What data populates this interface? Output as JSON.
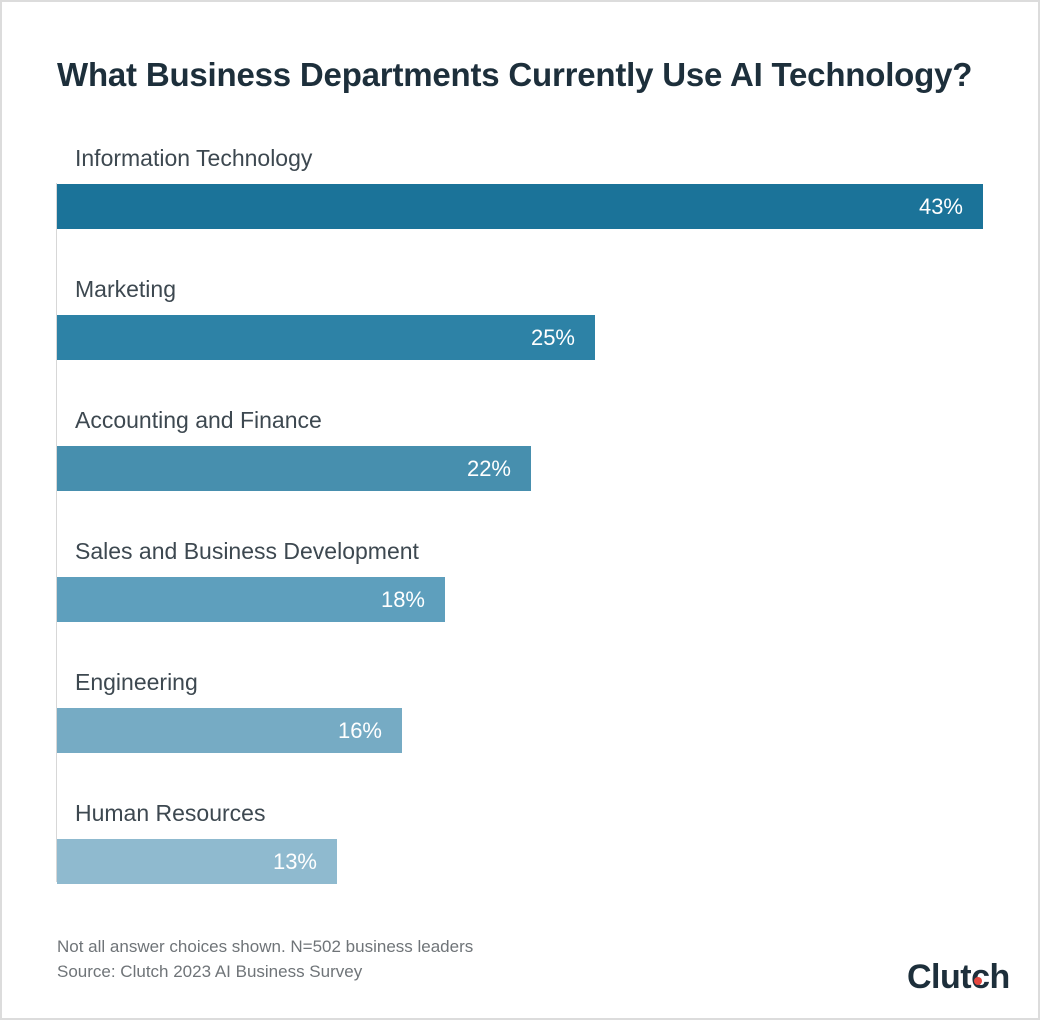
{
  "title": "What Business Departments Currently Use AI Technology?",
  "chart_data": {
    "type": "bar",
    "orientation": "horizontal",
    "title": "What Business Departments Currently Use AI Technology?",
    "categories": [
      "Information Technology",
      "Marketing",
      "Accounting and Finance",
      "Sales and Business Development",
      "Engineering",
      "Human Resources"
    ],
    "values": [
      43,
      25,
      22,
      18,
      16,
      13
    ],
    "value_labels": [
      "43%",
      "25%",
      "22%",
      "18%",
      "16%",
      "13%"
    ],
    "xlim": [
      0,
      43
    ],
    "grid": false,
    "legend": "none",
    "bar_colors": [
      "#1b7399",
      "#2d82a6",
      "#478fae",
      "#5e9fbd",
      "#76abc4",
      "#8fbacf"
    ]
  },
  "footer": {
    "note": "Not all answer choices shown. N=502 business leaders",
    "source": "Source: Clutch 2023 AI Business Survey"
  },
  "logo": {
    "text": "Clutch",
    "dot_color": "#e5473f"
  }
}
